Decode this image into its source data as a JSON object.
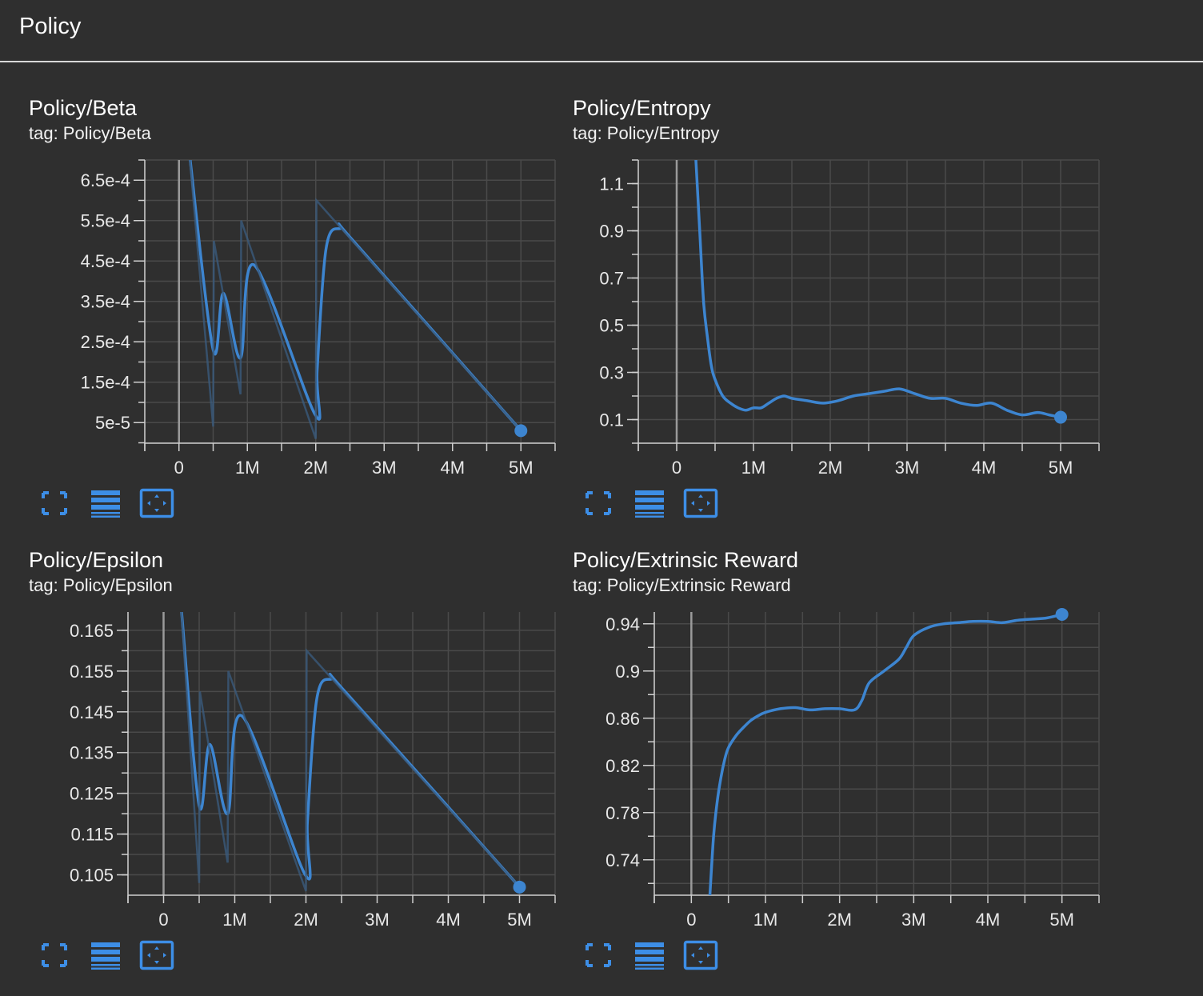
{
  "header": {
    "title": "Policy"
  },
  "colors": {
    "background": "#2f2f2f",
    "plot_bg": "#2f2f2f",
    "grid": "#4a4a4a",
    "line": "#3d85d0",
    "faded_line": "#3a5a7c",
    "axis": "#cfcfcf",
    "icon": "#3d8ee6"
  },
  "cards": [
    {
      "title": "Policy/Beta",
      "tag": "tag: Policy/Beta"
    },
    {
      "title": "Policy/Entropy",
      "tag": "tag: Policy/Entropy"
    },
    {
      "title": "Policy/Epsilon",
      "tag": "tag: Policy/Epsilon"
    },
    {
      "title": "Policy/Extrinsic Reward",
      "tag": "tag: Policy/Extrinsic Reward"
    }
  ],
  "card_buttons": [
    "fullscreen-icon",
    "list-lines-icon",
    "fit-domain-icon"
  ],
  "chart_data": [
    {
      "type": "line",
      "xlabel": "",
      "ylabel": "",
      "xlim": [
        -500000,
        5500000
      ],
      "ylim": [
        -1e-06,
        0.0007
      ],
      "xticks": [
        0,
        1000000,
        2000000,
        3000000,
        4000000,
        5000000
      ],
      "xtick_labels": [
        "0",
        "1M",
        "2M",
        "3M",
        "4M",
        "5M"
      ],
      "yticks": [
        5e-05,
        0.00015,
        0.00025,
        0.00035,
        0.00045,
        0.00055,
        0.00065
      ],
      "ytick_labels": [
        "5e-5",
        "1.5e-4",
        "2.5e-4",
        "3.5e-4",
        "4.5e-4",
        "5.5e-4",
        "6.5e-4"
      ],
      "grid": true,
      "series": [
        {
          "kind": "smoothed",
          "x": [
            150000,
            500000,
            650000,
            900000,
            1100000,
            1990000,
            2020000,
            2150000,
            2350000,
            2600000,
            5000000
          ],
          "y": [
            0.00072,
            0.00023,
            0.00037,
            0.00021,
            0.00044,
            7e-05,
            0.00018,
            0.00048,
            0.00053,
            0.00049,
            3e-05
          ]
        },
        {
          "kind": "raw",
          "x": [
            150000,
            500000,
            510000,
            900000,
            910000,
            2000000,
            2010000,
            5000000
          ],
          "y": [
            0.00072,
            4e-05,
            0.0005,
            0.00012,
            0.00055,
            1e-05,
            0.0006,
            3e-05
          ]
        }
      ],
      "last_point": {
        "x": 5000000,
        "y": 3e-05
      }
    },
    {
      "type": "line",
      "xlabel": "",
      "ylabel": "",
      "xlim": [
        -500000,
        5500000
      ],
      "ylim": [
        0.0,
        1.2
      ],
      "xticks": [
        0,
        1000000,
        2000000,
        3000000,
        4000000,
        5000000
      ],
      "xtick_labels": [
        "0",
        "1M",
        "2M",
        "3M",
        "4M",
        "5M"
      ],
      "yticks": [
        0.1,
        0.3,
        0.5,
        0.7,
        0.9,
        1.1
      ],
      "ytick_labels": [
        "0.1",
        "0.3",
        "0.5",
        "0.7",
        "0.9",
        "1.1"
      ],
      "grid": true,
      "series": [
        {
          "kind": "smoothed",
          "x": [
            250000,
            300000,
            350000,
            400000,
            450000,
            500000,
            600000,
            700000,
            800000,
            900000,
            1000000,
            1100000,
            1200000,
            1300000,
            1400000,
            1500000,
            1700000,
            1900000,
            2100000,
            2300000,
            2500000,
            2700000,
            2900000,
            3100000,
            3300000,
            3500000,
            3700000,
            3900000,
            4100000,
            4300000,
            4500000,
            4700000,
            4850000,
            5000000
          ],
          "y": [
            1.2,
            0.9,
            0.6,
            0.45,
            0.33,
            0.27,
            0.2,
            0.17,
            0.15,
            0.14,
            0.15,
            0.15,
            0.17,
            0.19,
            0.2,
            0.19,
            0.18,
            0.17,
            0.18,
            0.2,
            0.21,
            0.22,
            0.23,
            0.21,
            0.19,
            0.19,
            0.17,
            0.16,
            0.17,
            0.14,
            0.12,
            0.13,
            0.12,
            0.11
          ]
        }
      ],
      "last_point": {
        "x": 5000000,
        "y": 0.11
      }
    },
    {
      "type": "line",
      "xlabel": "",
      "ylabel": "",
      "xlim": [
        -500000,
        5500000
      ],
      "ylim": [
        0.1,
        0.1695
      ],
      "xticks": [
        0,
        1000000,
        2000000,
        3000000,
        4000000,
        5000000
      ],
      "xtick_labels": [
        "0",
        "1M",
        "2M",
        "3M",
        "4M",
        "5M"
      ],
      "yticks": [
        0.105,
        0.115,
        0.125,
        0.135,
        0.145,
        0.155,
        0.165
      ],
      "ytick_labels": [
        "0.105",
        "0.115",
        "0.125",
        "0.135",
        "0.145",
        "0.155",
        "0.165"
      ],
      "grid": true,
      "series": [
        {
          "kind": "smoothed",
          "x": [
            250000,
            500000,
            650000,
            900000,
            1100000,
            1990000,
            2020000,
            2150000,
            2350000,
            2600000,
            5000000
          ],
          "y": [
            0.17,
            0.122,
            0.137,
            0.12,
            0.144,
            0.105,
            0.118,
            0.148,
            0.153,
            0.149,
            0.102
          ]
        },
        {
          "kind": "raw",
          "x": [
            250000,
            500000,
            510000,
            900000,
            910000,
            2000000,
            2010000,
            5000000
          ],
          "y": [
            0.17,
            0.103,
            0.15,
            0.108,
            0.155,
            0.101,
            0.16,
            0.102
          ]
        }
      ],
      "last_point": {
        "x": 5000000,
        "y": 0.102
      }
    },
    {
      "type": "line",
      "xlabel": "",
      "ylabel": "",
      "xlim": [
        -500000,
        5500000
      ],
      "ylim": [
        0.71,
        0.95
      ],
      "xticks": [
        0,
        1000000,
        2000000,
        3000000,
        4000000,
        5000000
      ],
      "xtick_labels": [
        "0",
        "1M",
        "2M",
        "3M",
        "4M",
        "5M"
      ],
      "yticks": [
        0.74,
        0.78,
        0.82,
        0.86,
        0.9,
        0.94
      ],
      "ytick_labels": [
        "0.74",
        "0.78",
        "0.82",
        "0.86",
        "0.9",
        "0.94"
      ],
      "grid": true,
      "series": [
        {
          "kind": "smoothed",
          "x": [
            250000,
            300000,
            350000,
            400000,
            450000,
            500000,
            600000,
            700000,
            800000,
            900000,
            1000000,
            1200000,
            1400000,
            1600000,
            1800000,
            2000000,
            2200000,
            2300000,
            2400000,
            2600000,
            2800000,
            2900000,
            3000000,
            3200000,
            3400000,
            3600000,
            3800000,
            4000000,
            4200000,
            4400000,
            4600000,
            4800000,
            5000000
          ],
          "y": [
            0.71,
            0.76,
            0.79,
            0.81,
            0.825,
            0.835,
            0.845,
            0.852,
            0.858,
            0.862,
            0.865,
            0.868,
            0.869,
            0.867,
            0.868,
            0.868,
            0.867,
            0.875,
            0.89,
            0.9,
            0.91,
            0.92,
            0.93,
            0.937,
            0.94,
            0.941,
            0.942,
            0.942,
            0.941,
            0.943,
            0.944,
            0.945,
            0.948
          ]
        }
      ],
      "last_point": {
        "x": 5000000,
        "y": 0.948
      }
    }
  ]
}
